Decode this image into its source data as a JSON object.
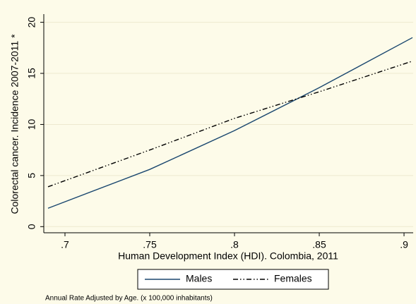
{
  "chart_data": {
    "type": "line",
    "x_label": "Human Development Index (HDI). Colombia, 2011",
    "y_label": "Colorectal cancer. Incidence 2007-2011 *",
    "note": "Annual Rate Adjusted by Age. (x 100,000 inhabitants)",
    "x": [
      0.69,
      0.75,
      0.8,
      0.85,
      0.905
    ],
    "series": [
      {
        "name": "Males",
        "color": "#1a476f",
        "dash": "solid",
        "values": [
          1.8,
          5.6,
          9.4,
          13.6,
          18.5
        ]
      },
      {
        "name": "Females",
        "color": "#000000",
        "dash": "dashdot",
        "values": [
          3.9,
          7.5,
          10.6,
          13.2,
          16.2
        ]
      }
    ],
    "xlim": [
      0.6875,
      0.9054
    ],
    "xticks": [
      {
        "value": 0.7,
        "label": ".7"
      },
      {
        "value": 0.75,
        "label": ".75"
      },
      {
        "value": 0.8,
        "label": ".8"
      },
      {
        "value": 0.85,
        "label": ".85"
      },
      {
        "value": 0.9,
        "label": ".9"
      }
    ],
    "ylim": [
      -0.6,
      20.8
    ],
    "yticks": [
      0,
      5,
      10,
      15,
      20
    ],
    "grid": true,
    "legend": "bottom"
  }
}
